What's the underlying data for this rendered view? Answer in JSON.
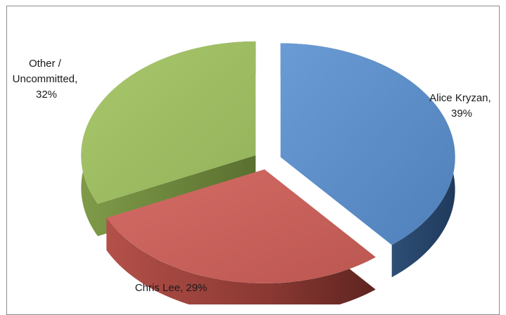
{
  "chart_data": {
    "type": "pie",
    "style": "3d-exploded",
    "legend": "none",
    "slices": [
      {
        "label": "Alice Kryzan",
        "value": 39,
        "display": "39%",
        "color": "#5b8fc9",
        "side_color": "#2e4d73"
      },
      {
        "label": "Chris Lee",
        "value": 29,
        "display": "29%",
        "color": "#c9605a",
        "side_color": "#7d322c"
      },
      {
        "label": "Other / Uncommitted",
        "value": 32,
        "display": "32%",
        "color": "#9fbf62",
        "side_color": "#5c7330"
      }
    ]
  }
}
